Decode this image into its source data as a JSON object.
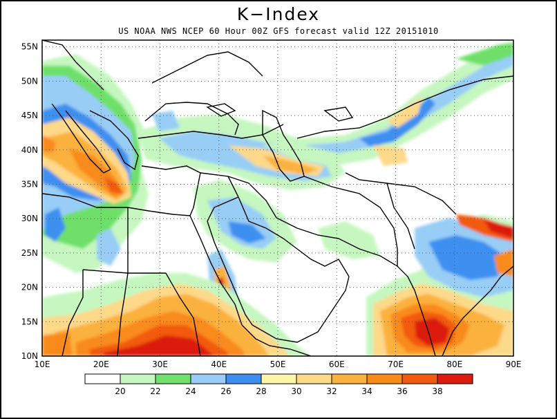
{
  "title": "K−Index",
  "subtitle": "US NOAA NWS NCEP 60 Hour 00Z GFS forecast valid 12Z 20151010",
  "map": {
    "lon_range": [
      10,
      90
    ],
    "lat_range": [
      10,
      56
    ],
    "lon_ticks": [
      "10E",
      "20E",
      "30E",
      "40E",
      "50E",
      "60E",
      "70E",
      "80E",
      "90E"
    ],
    "lat_ticks": [
      "10N",
      "15N",
      "20N",
      "25N",
      "30N",
      "35N",
      "40N",
      "45N",
      "50N",
      "55N"
    ],
    "grid": "dotted"
  },
  "legend": {
    "bins": [
      {
        "color": "#ffffff",
        "label": "20"
      },
      {
        "color": "#c6f7c0",
        "label": "22"
      },
      {
        "color": "#6ee06b",
        "label": "24"
      },
      {
        "color": "#98cdf5",
        "label": "26"
      },
      {
        "color": "#3e8ff0",
        "label": "28"
      },
      {
        "color": "#fff5a6",
        "label": "30"
      },
      {
        "color": "#fdd98a",
        "label": "32"
      },
      {
        "color": "#fbb13d",
        "label": "34"
      },
      {
        "color": "#f98a1a",
        "label": "36"
      },
      {
        "color": "#f25a10",
        "label": "38"
      },
      {
        "color": "#db1c0e",
        "label": ""
      }
    ]
  }
}
